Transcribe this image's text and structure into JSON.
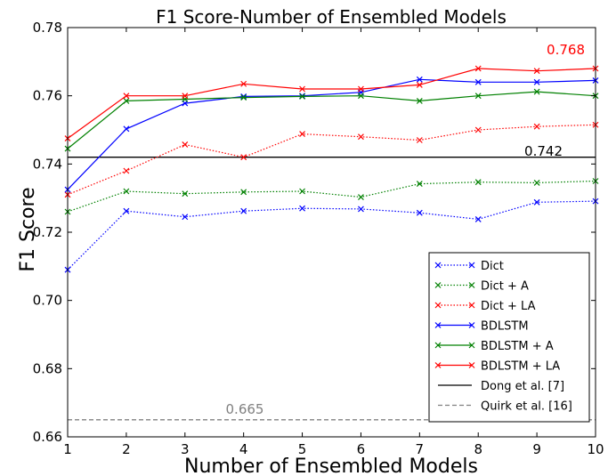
{
  "chart_data": {
    "type": "line",
    "title": "F1 Score-Number of Ensembled Models",
    "xlabel": "Number of Ensembled Models",
    "ylabel": "F1 Score",
    "xlim": [
      1,
      10
    ],
    "ylim": [
      0.66,
      0.78
    ],
    "x": [
      1,
      2,
      3,
      4,
      5,
      6,
      7,
      8,
      9,
      10
    ],
    "xticks": [
      1,
      2,
      3,
      4,
      5,
      6,
      7,
      8,
      9,
      10
    ],
    "yticks": [
      "0.66",
      "0.68",
      "0.70",
      "0.72",
      "0.74",
      "0.76",
      "0.78"
    ],
    "grid": false,
    "legend_position": "bottom-right",
    "series": [
      {
        "name": "Dict",
        "color": "#0000ff",
        "style": "dotted",
        "marker": "x",
        "values": [
          0.709,
          0.7262,
          0.7245,
          0.7262,
          0.727,
          0.7268,
          0.7257,
          0.7238,
          0.7288,
          0.7291
        ]
      },
      {
        "name": "Dict + A",
        "color": "#008000",
        "style": "dotted",
        "marker": "x",
        "values": [
          0.726,
          0.732,
          0.7313,
          0.7318,
          0.732,
          0.7303,
          0.7342,
          0.7347,
          0.7345,
          0.735
        ]
      },
      {
        "name": "Dict + LA",
        "color": "#ff0000",
        "style": "dotted",
        "marker": "x",
        "values": [
          0.731,
          0.738,
          0.7457,
          0.742,
          0.7488,
          0.748,
          0.747,
          0.75,
          0.751,
          0.7515
        ]
      },
      {
        "name": "BDLSTM",
        "color": "#0000ff",
        "style": "solid",
        "marker": "x",
        "values": [
          0.7325,
          0.7503,
          0.7578,
          0.7598,
          0.76,
          0.761,
          0.7648,
          0.764,
          0.764,
          0.7645
        ]
      },
      {
        "name": "BDLSTM + A",
        "color": "#008000",
        "style": "solid",
        "marker": "x",
        "values": [
          0.7445,
          0.7585,
          0.759,
          0.7595,
          0.7598,
          0.76,
          0.7585,
          0.76,
          0.7612,
          0.76
        ]
      },
      {
        "name": "BDLSTM + LA",
        "color": "#ff0000",
        "style": "solid",
        "marker": "x",
        "values": [
          0.7475,
          0.76,
          0.76,
          0.7635,
          0.762,
          0.762,
          0.7632,
          0.768,
          0.7673,
          0.768
        ]
      }
    ],
    "reference_lines": [
      {
        "name": "Dong et al. [7]",
        "value": 0.742,
        "color": "#000000",
        "style": "solid",
        "label": "0.742"
      },
      {
        "name": "Quirk et al. [16]",
        "value": 0.665,
        "color": "#808080",
        "style": "dashed",
        "label": "0.665"
      }
    ],
    "annotations": [
      {
        "text": "0.768",
        "color": "#ff0000"
      },
      {
        "text": "0.742",
        "color": "#000000"
      },
      {
        "text": "0.665",
        "color": "#808080"
      }
    ]
  }
}
